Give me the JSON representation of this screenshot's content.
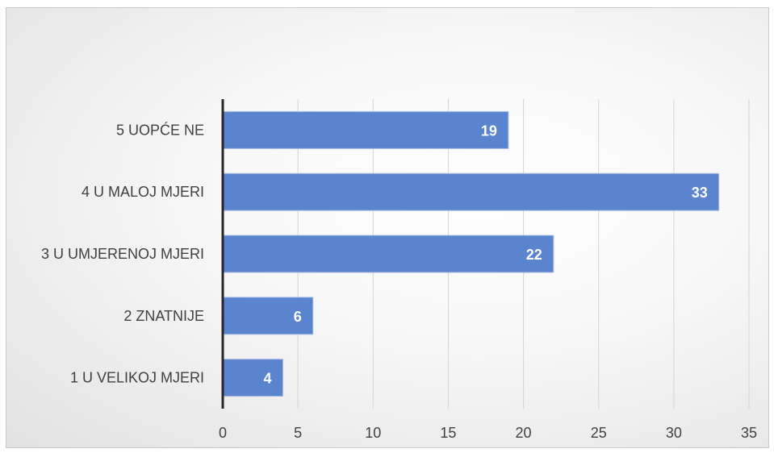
{
  "chart_data": {
    "type": "bar",
    "orientation": "horizontal",
    "categories": [
      "5  UOPĆE NE",
      "4  U MALOJ MJERI",
      "3  U UMJERENOJ MJERI",
      "2  ZNATNIJE",
      "1 U VELIKOJ MJERI"
    ],
    "values": [
      19,
      33,
      22,
      6,
      4
    ],
    "data_labels": [
      "19",
      "33",
      "22",
      "6",
      "4"
    ],
    "title": "",
    "xlabel": "",
    "ylabel": "",
    "xlim": [
      0,
      35
    ],
    "xticks": [
      0,
      5,
      10,
      15,
      20,
      25,
      30,
      35
    ],
    "xtick_labels": [
      "0",
      "5",
      "10",
      "15",
      "20",
      "25",
      "30",
      "35"
    ],
    "grid": "vertical",
    "legend": "none",
    "colors": {
      "bar": "#5b84cf",
      "data_label": "#ffffff",
      "axis": "#262626",
      "grid": "#d4d4d4",
      "text": "#404040"
    }
  }
}
